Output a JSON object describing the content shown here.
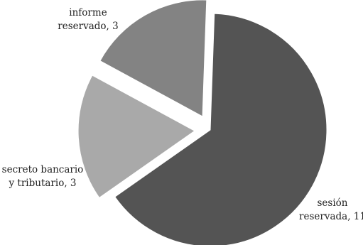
{
  "chart_data": {
    "type": "pie",
    "title": "",
    "slices": [
      {
        "category": "sesión reservada",
        "value": 11,
        "label_lines": [
          "sesión",
          "reservada, 11"
        ],
        "color": "#545454",
        "exploded": false
      },
      {
        "category": "secreto bancario y tributario",
        "value": 3,
        "label_lines": [
          "secreto bancario",
          "y tributario, 3"
        ],
        "color": "#a9a9a9",
        "exploded": true
      },
      {
        "category": "informe reservado",
        "value": 3,
        "label_lines": [
          "informe",
          "reservado, 3"
        ],
        "color": "#838383",
        "exploded": true
      }
    ]
  }
}
